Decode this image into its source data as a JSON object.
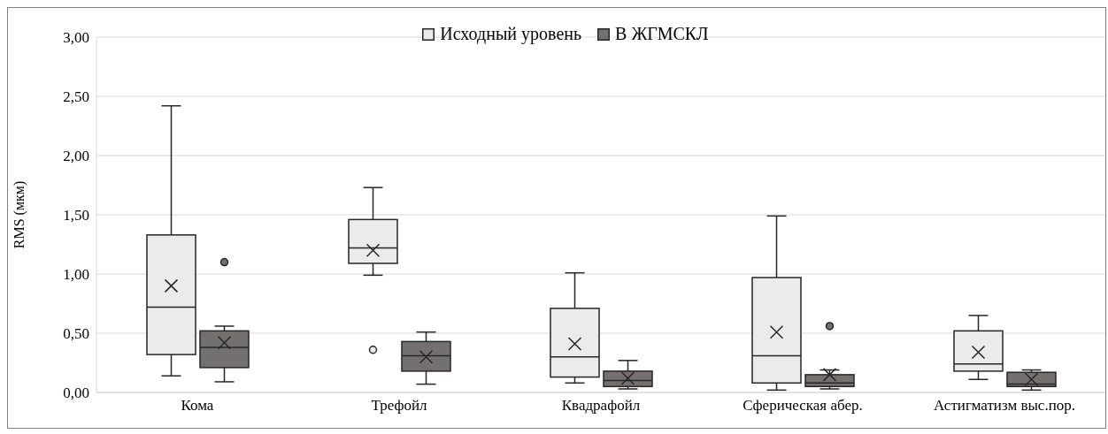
{
  "chart_data": {
    "type": "box",
    "ylabel": "RMS (мкм)",
    "categories": [
      "Кома",
      "Трефойл",
      "Квадрафойл",
      "Сферическая абер.",
      "Астигматизм выс.пор."
    ],
    "series": [
      {
        "name": "Исходный уровень",
        "color": "#ebebeb",
        "boxes": [
          {
            "low": 0.14,
            "q1": 0.32,
            "median": 0.72,
            "q3": 1.33,
            "high": 2.42,
            "mean": 0.9
          },
          {
            "low": 0.99,
            "q1": 1.09,
            "median": 1.22,
            "q3": 1.46,
            "high": 1.73,
            "mean": 1.2,
            "outliers": [
              0.36
            ]
          },
          {
            "low": 0.08,
            "q1": 0.13,
            "median": 0.3,
            "q3": 0.71,
            "high": 1.01,
            "mean": 0.41
          },
          {
            "low": 0.02,
            "q1": 0.08,
            "median": 0.31,
            "q3": 0.97,
            "high": 1.49,
            "mean": 0.51
          },
          {
            "low": 0.11,
            "q1": 0.18,
            "median": 0.24,
            "q3": 0.52,
            "high": 0.65,
            "mean": 0.34
          }
        ]
      },
      {
        "name": "В ЖГМСКЛ",
        "color": "#757070",
        "boxes": [
          {
            "low": 0.09,
            "q1": 0.21,
            "median": 0.38,
            "q3": 0.52,
            "high": 0.56,
            "mean": 0.42,
            "outliers": [
              1.1
            ]
          },
          {
            "low": 0.07,
            "q1": 0.18,
            "median": 0.31,
            "q3": 0.43,
            "high": 0.51,
            "mean": 0.3
          },
          {
            "low": 0.03,
            "q1": 0.05,
            "median": 0.1,
            "q3": 0.18,
            "high": 0.27,
            "mean": 0.12
          },
          {
            "low": 0.03,
            "q1": 0.05,
            "median": 0.08,
            "q3": 0.15,
            "high": 0.19,
            "mean": 0.15,
            "outliers": [
              0.56
            ]
          },
          {
            "low": 0.02,
            "q1": 0.05,
            "median": 0.07,
            "q3": 0.17,
            "high": 0.19,
            "mean": 0.11
          }
        ]
      }
    ],
    "ylim": [
      0,
      3
    ],
    "yticks": [
      {
        "value": 0,
        "label": "0,00"
      },
      {
        "value": 0.5,
        "label": "0,50"
      },
      {
        "value": 1,
        "label": "1,00"
      },
      {
        "value": 1.5,
        "label": "1,50"
      },
      {
        "value": 2,
        "label": "2,00"
      },
      {
        "value": 2.5,
        "label": "2,50"
      },
      {
        "value": 3,
        "label": "3,00"
      }
    ],
    "grid": "y",
    "legend": "top"
  }
}
